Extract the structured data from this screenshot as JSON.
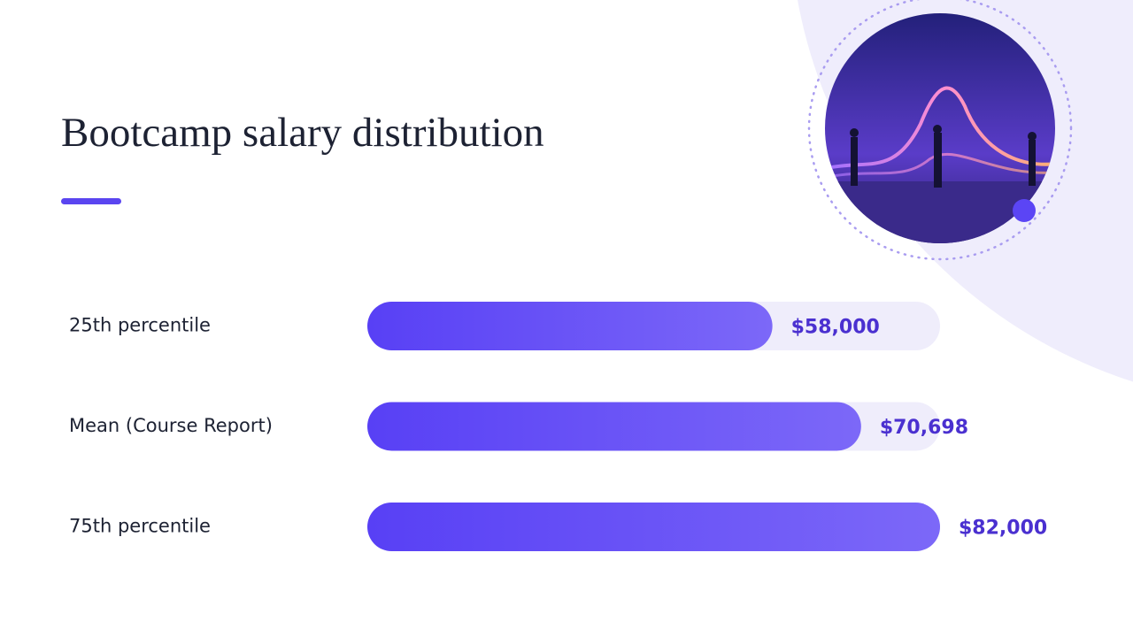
{
  "chart_data": {
    "type": "bar",
    "orientation": "horizontal",
    "title": "Bootcamp salary distribution",
    "categories": [
      "25th percentile",
      "Mean (Course Report)",
      "75th percentile"
    ],
    "values": [
      58000,
      70698,
      82000
    ],
    "value_labels": [
      "$58,000",
      "$70,698",
      "$82,000"
    ],
    "color": "#5a42f6"
  }
}
